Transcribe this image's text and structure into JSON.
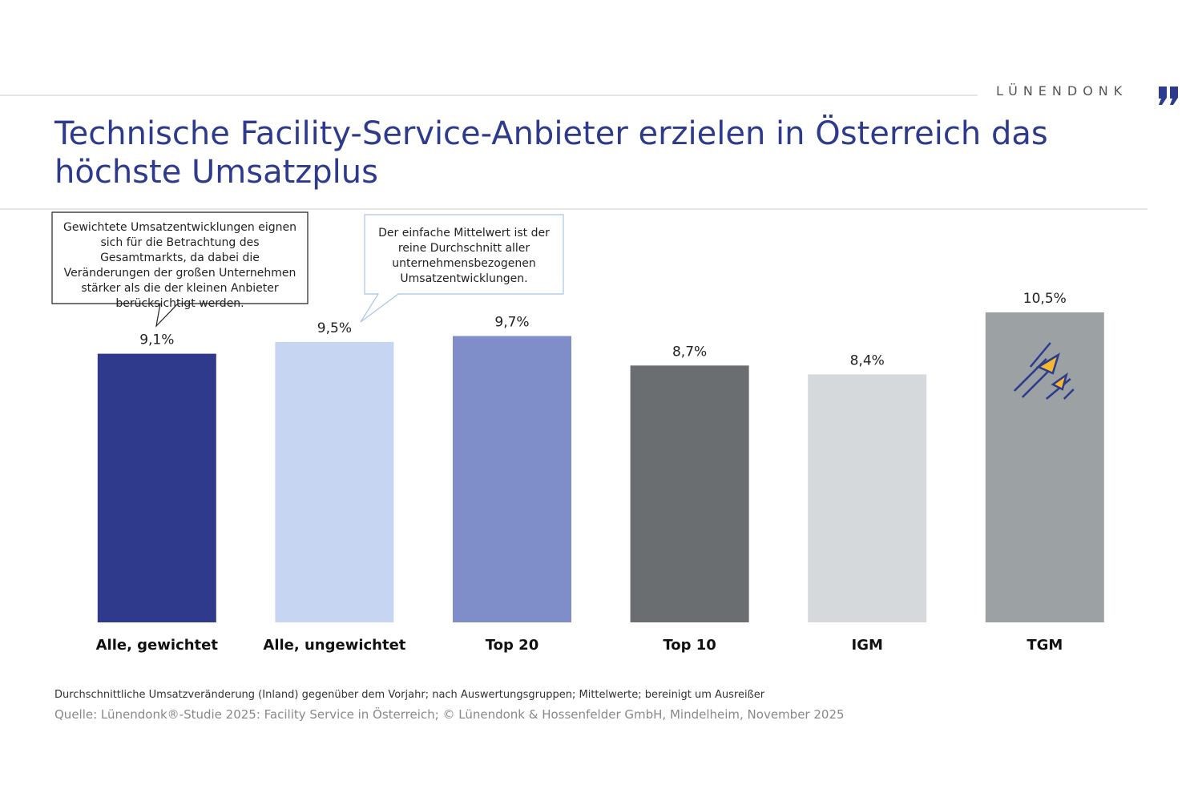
{
  "header": {
    "brand": "LÜNENDONK"
  },
  "chart_data": {
    "type": "bar",
    "title": "Technische Facility-Service-Anbieter erzielen in Österreich das höchste Umsatzplus",
    "categories": [
      "Alle, gewichtet",
      "Alle, ungewichtet",
      "Top 20",
      "Top 10",
      "IGM",
      "TGM"
    ],
    "values": [
      9.1,
      9.5,
      9.7,
      8.7,
      8.4,
      10.5
    ],
    "value_labels": [
      "9,1%",
      "9,5%",
      "9,7%",
      "8,7%",
      "8,4%",
      "10,5%"
    ],
    "colors": [
      "#303a8c",
      "#c5d5f2",
      "#7f8dc9",
      "#6a6e71",
      "#d5d9dc",
      "#9ca1a4"
    ],
    "annotations": [
      "Gewichtete Umsatzentwicklungen eignen sich für die Betrachtung des Gesamtmarkts, da dabei die Veränderungen der großen Unternehmen stärker als die der kleinen Anbieter berücksichtigt werden.",
      "Der einfache Mittelwert ist der reine Durchschnitt aller unternehmensbezogenen Umsatzentwicklungen."
    ],
    "footnote": "Durchschnittliche Umsatzveränderung (Inland) gegenüber dem Vorjahr; nach Auswertungsgruppen; Mittelwerte; bereinigt um Ausreißer",
    "source": "Quelle: Lünendonk®-Studie 2025: Facility Service in Österreich; © Lünendonk & Hossenfelder GmbH, Mindelheim, November 2025"
  }
}
